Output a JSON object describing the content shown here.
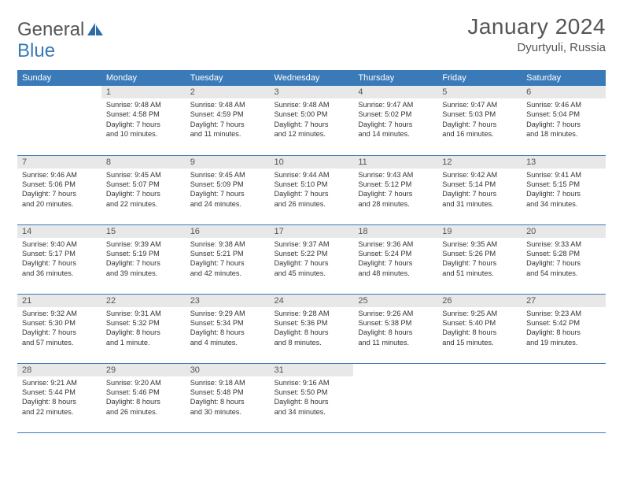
{
  "logo": {
    "text1": "General",
    "text2": "Blue"
  },
  "title": "January 2024",
  "location": "Dyurtyuli, Russia",
  "colors": {
    "header_bg": "#3a7ab8",
    "header_fg": "#ffffff",
    "daynum_bg": "#e8e8e8",
    "text": "#555555",
    "body_text": "#333333",
    "rule": "#3a7ab8"
  },
  "weekdays": [
    "Sunday",
    "Monday",
    "Tuesday",
    "Wednesday",
    "Thursday",
    "Friday",
    "Saturday"
  ],
  "weeks": [
    [
      null,
      {
        "n": "1",
        "l1": "Sunrise: 9:48 AM",
        "l2": "Sunset: 4:58 PM",
        "l3": "Daylight: 7 hours",
        "l4": "and 10 minutes."
      },
      {
        "n": "2",
        "l1": "Sunrise: 9:48 AM",
        "l2": "Sunset: 4:59 PM",
        "l3": "Daylight: 7 hours",
        "l4": "and 11 minutes."
      },
      {
        "n": "3",
        "l1": "Sunrise: 9:48 AM",
        "l2": "Sunset: 5:00 PM",
        "l3": "Daylight: 7 hours",
        "l4": "and 12 minutes."
      },
      {
        "n": "4",
        "l1": "Sunrise: 9:47 AM",
        "l2": "Sunset: 5:02 PM",
        "l3": "Daylight: 7 hours",
        "l4": "and 14 minutes."
      },
      {
        "n": "5",
        "l1": "Sunrise: 9:47 AM",
        "l2": "Sunset: 5:03 PM",
        "l3": "Daylight: 7 hours",
        "l4": "and 16 minutes."
      },
      {
        "n": "6",
        "l1": "Sunrise: 9:46 AM",
        "l2": "Sunset: 5:04 PM",
        "l3": "Daylight: 7 hours",
        "l4": "and 18 minutes."
      }
    ],
    [
      {
        "n": "7",
        "l1": "Sunrise: 9:46 AM",
        "l2": "Sunset: 5:06 PM",
        "l3": "Daylight: 7 hours",
        "l4": "and 20 minutes."
      },
      {
        "n": "8",
        "l1": "Sunrise: 9:45 AM",
        "l2": "Sunset: 5:07 PM",
        "l3": "Daylight: 7 hours",
        "l4": "and 22 minutes."
      },
      {
        "n": "9",
        "l1": "Sunrise: 9:45 AM",
        "l2": "Sunset: 5:09 PM",
        "l3": "Daylight: 7 hours",
        "l4": "and 24 minutes."
      },
      {
        "n": "10",
        "l1": "Sunrise: 9:44 AM",
        "l2": "Sunset: 5:10 PM",
        "l3": "Daylight: 7 hours",
        "l4": "and 26 minutes."
      },
      {
        "n": "11",
        "l1": "Sunrise: 9:43 AM",
        "l2": "Sunset: 5:12 PM",
        "l3": "Daylight: 7 hours",
        "l4": "and 28 minutes."
      },
      {
        "n": "12",
        "l1": "Sunrise: 9:42 AM",
        "l2": "Sunset: 5:14 PM",
        "l3": "Daylight: 7 hours",
        "l4": "and 31 minutes."
      },
      {
        "n": "13",
        "l1": "Sunrise: 9:41 AM",
        "l2": "Sunset: 5:15 PM",
        "l3": "Daylight: 7 hours",
        "l4": "and 34 minutes."
      }
    ],
    [
      {
        "n": "14",
        "l1": "Sunrise: 9:40 AM",
        "l2": "Sunset: 5:17 PM",
        "l3": "Daylight: 7 hours",
        "l4": "and 36 minutes."
      },
      {
        "n": "15",
        "l1": "Sunrise: 9:39 AM",
        "l2": "Sunset: 5:19 PM",
        "l3": "Daylight: 7 hours",
        "l4": "and 39 minutes."
      },
      {
        "n": "16",
        "l1": "Sunrise: 9:38 AM",
        "l2": "Sunset: 5:21 PM",
        "l3": "Daylight: 7 hours",
        "l4": "and 42 minutes."
      },
      {
        "n": "17",
        "l1": "Sunrise: 9:37 AM",
        "l2": "Sunset: 5:22 PM",
        "l3": "Daylight: 7 hours",
        "l4": "and 45 minutes."
      },
      {
        "n": "18",
        "l1": "Sunrise: 9:36 AM",
        "l2": "Sunset: 5:24 PM",
        "l3": "Daylight: 7 hours",
        "l4": "and 48 minutes."
      },
      {
        "n": "19",
        "l1": "Sunrise: 9:35 AM",
        "l2": "Sunset: 5:26 PM",
        "l3": "Daylight: 7 hours",
        "l4": "and 51 minutes."
      },
      {
        "n": "20",
        "l1": "Sunrise: 9:33 AM",
        "l2": "Sunset: 5:28 PM",
        "l3": "Daylight: 7 hours",
        "l4": "and 54 minutes."
      }
    ],
    [
      {
        "n": "21",
        "l1": "Sunrise: 9:32 AM",
        "l2": "Sunset: 5:30 PM",
        "l3": "Daylight: 7 hours",
        "l4": "and 57 minutes."
      },
      {
        "n": "22",
        "l1": "Sunrise: 9:31 AM",
        "l2": "Sunset: 5:32 PM",
        "l3": "Daylight: 8 hours",
        "l4": "and 1 minute."
      },
      {
        "n": "23",
        "l1": "Sunrise: 9:29 AM",
        "l2": "Sunset: 5:34 PM",
        "l3": "Daylight: 8 hours",
        "l4": "and 4 minutes."
      },
      {
        "n": "24",
        "l1": "Sunrise: 9:28 AM",
        "l2": "Sunset: 5:36 PM",
        "l3": "Daylight: 8 hours",
        "l4": "and 8 minutes."
      },
      {
        "n": "25",
        "l1": "Sunrise: 9:26 AM",
        "l2": "Sunset: 5:38 PM",
        "l3": "Daylight: 8 hours",
        "l4": "and 11 minutes."
      },
      {
        "n": "26",
        "l1": "Sunrise: 9:25 AM",
        "l2": "Sunset: 5:40 PM",
        "l3": "Daylight: 8 hours",
        "l4": "and 15 minutes."
      },
      {
        "n": "27",
        "l1": "Sunrise: 9:23 AM",
        "l2": "Sunset: 5:42 PM",
        "l3": "Daylight: 8 hours",
        "l4": "and 19 minutes."
      }
    ],
    [
      {
        "n": "28",
        "l1": "Sunrise: 9:21 AM",
        "l2": "Sunset: 5:44 PM",
        "l3": "Daylight: 8 hours",
        "l4": "and 22 minutes."
      },
      {
        "n": "29",
        "l1": "Sunrise: 9:20 AM",
        "l2": "Sunset: 5:46 PM",
        "l3": "Daylight: 8 hours",
        "l4": "and 26 minutes."
      },
      {
        "n": "30",
        "l1": "Sunrise: 9:18 AM",
        "l2": "Sunset: 5:48 PM",
        "l3": "Daylight: 8 hours",
        "l4": "and 30 minutes."
      },
      {
        "n": "31",
        "l1": "Sunrise: 9:16 AM",
        "l2": "Sunset: 5:50 PM",
        "l3": "Daylight: 8 hours",
        "l4": "and 34 minutes."
      },
      null,
      null,
      null
    ]
  ]
}
